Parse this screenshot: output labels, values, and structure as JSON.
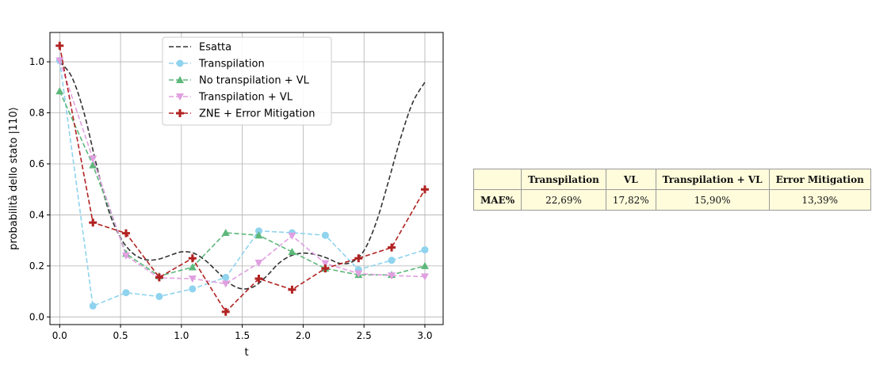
{
  "chart_data": {
    "type": "line",
    "xlabel": "t",
    "ylabel": "probabilità dello stato |110⟩",
    "xlim": [
      -0.08,
      3.15
    ],
    "ylim": [
      -0.03,
      1.115
    ],
    "xticks": [
      "0.0",
      "0.5",
      "1.0",
      "1.5",
      "2.0",
      "2.5",
      "3.0"
    ],
    "yticks": [
      "0.0",
      "0.2",
      "0.4",
      "0.6",
      "0.8",
      "1.0"
    ],
    "grid": true,
    "legend_position": "top-center",
    "series": [
      {
        "name": "Esatta",
        "color": "#333333",
        "marker": "none",
        "x": [
          0,
          0.1,
          0.2,
          0.3,
          0.4,
          0.5,
          0.6,
          0.7,
          0.8,
          0.9,
          1.0,
          1.1,
          1.2,
          1.3,
          1.4,
          1.5,
          1.6,
          1.7,
          1.8,
          1.9,
          2.0,
          2.1,
          2.2,
          2.3,
          2.4,
          2.5,
          2.6,
          2.7,
          2.8,
          2.9,
          3.0
        ],
        "y": [
          1.0,
          0.94,
          0.8,
          0.6,
          0.42,
          0.31,
          0.25,
          0.225,
          0.225,
          0.24,
          0.255,
          0.25,
          0.22,
          0.175,
          0.13,
          0.11,
          0.12,
          0.16,
          0.21,
          0.24,
          0.25,
          0.245,
          0.23,
          0.21,
          0.215,
          0.26,
          0.37,
          0.53,
          0.7,
          0.84,
          0.92
        ]
      },
      {
        "name": "Transpilation",
        "color": "#8fd3ee",
        "marker": "circle",
        "x": [
          0,
          0.273,
          0.545,
          0.818,
          1.091,
          1.364,
          1.636,
          1.909,
          2.182,
          2.455,
          2.727,
          3.0
        ],
        "y": [
          1.005,
          0.043,
          0.095,
          0.08,
          0.11,
          0.155,
          0.337,
          0.33,
          0.32,
          0.185,
          0.222,
          0.263
        ]
      },
      {
        "name": "No transpilation + VL",
        "color": "#5cb87a",
        "marker": "triangle-up",
        "x": [
          0,
          0.273,
          0.545,
          0.818,
          1.091,
          1.364,
          1.636,
          1.909,
          2.182,
          2.455,
          2.727,
          3.0
        ],
        "y": [
          0.885,
          0.595,
          0.248,
          0.16,
          0.195,
          0.33,
          0.32,
          0.255,
          0.19,
          0.165,
          0.165,
          0.2
        ]
      },
      {
        "name": "Transpilation + VL",
        "color": "#e0a0e0",
        "marker": "triangle-down",
        "x": [
          0,
          0.273,
          0.545,
          0.818,
          1.091,
          1.364,
          1.636,
          1.909,
          2.182,
          2.455,
          2.727,
          3.0
        ],
        "y": [
          1.005,
          0.62,
          0.24,
          0.153,
          0.15,
          0.13,
          0.212,
          0.318,
          0.21,
          0.17,
          0.162,
          0.158
        ]
      },
      {
        "name": "ZNE + Error Mitigation",
        "color": "#b22222",
        "marker": "plus",
        "x": [
          0,
          0.273,
          0.545,
          0.818,
          1.091,
          1.364,
          1.636,
          1.909,
          2.182,
          2.455,
          2.727,
          3.0
        ],
        "y": [
          1.063,
          0.37,
          0.328,
          0.155,
          0.23,
          0.02,
          0.15,
          0.107,
          0.19,
          0.23,
          0.272,
          0.5
        ]
      }
    ]
  },
  "table": {
    "headers": [
      "",
      "Transpilation",
      "VL",
      "Transpilation + VL",
      "Error Mitigation"
    ],
    "row_label": "MAE%",
    "values": [
      "22,69%",
      "17,82%",
      "15,90%",
      "13,39%"
    ]
  }
}
